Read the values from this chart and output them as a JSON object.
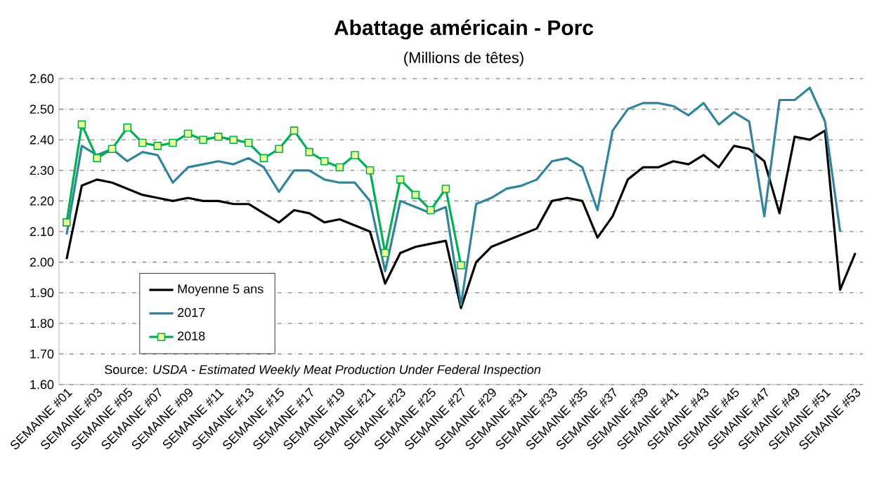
{
  "chart_data": {
    "type": "line",
    "title": "Abattage américain - Porc",
    "subtitle": "(Millions de têtes)",
    "categories": [
      "SEMAINE #01",
      null,
      "SEMAINE #03",
      null,
      "SEMAINE #05",
      null,
      "SEMAINE #07",
      null,
      "SEMAINE #09",
      null,
      "SEMAINE #11",
      null,
      "SEMAINE #13",
      null,
      "SEMAINE #15",
      null,
      "SEMAINE #17",
      null,
      "SEMAINE #19",
      null,
      "SEMAINE #21",
      null,
      "SEMAINE #23",
      null,
      "SEMAINE #25",
      null,
      "SEMAINE #27",
      null,
      "SEMAINE #29",
      null,
      "SEMAINE #31",
      null,
      "SEMAINE #33",
      null,
      "SEMAINE #35",
      null,
      "SEMAINE #37",
      null,
      "SEMAINE #39",
      null,
      "SEMAINE #41",
      null,
      "SEMAINE #43",
      null,
      "SEMAINE #45",
      null,
      "SEMAINE #47",
      null,
      "SEMAINE #49",
      null,
      "SEMAINE #51",
      null,
      "SEMAINE #53"
    ],
    "series": [
      {
        "name": "Moyenne 5 ans",
        "color": "#000000",
        "marker": "none",
        "values": [
          2.01,
          2.25,
          2.27,
          2.26,
          2.24,
          2.22,
          2.21,
          2.2,
          2.21,
          2.2,
          2.2,
          2.19,
          2.19,
          2.16,
          2.13,
          2.17,
          2.16,
          2.13,
          2.14,
          2.12,
          2.1,
          1.93,
          2.03,
          2.05,
          2.06,
          2.07,
          1.85,
          2.0,
          2.05,
          2.07,
          2.09,
          2.11,
          2.2,
          2.21,
          2.2,
          2.08,
          2.15,
          2.27,
          2.31,
          2.31,
          2.33,
          2.32,
          2.35,
          2.31,
          2.38,
          2.37,
          2.33,
          2.16,
          2.41,
          2.4,
          2.43,
          1.91,
          2.03
        ]
      },
      {
        "name": "2017",
        "color": "#31849b",
        "marker": "none",
        "values": [
          2.09,
          2.38,
          2.35,
          2.37,
          2.33,
          2.36,
          2.35,
          2.26,
          2.31,
          2.32,
          2.33,
          2.32,
          2.34,
          2.31,
          2.23,
          2.3,
          2.3,
          2.27,
          2.26,
          2.26,
          2.2,
          1.97,
          2.2,
          2.18,
          2.16,
          2.18,
          1.86,
          2.19,
          2.21,
          2.24,
          2.25,
          2.27,
          2.33,
          2.34,
          2.31,
          2.17,
          2.43,
          2.5,
          2.52,
          2.52,
          2.51,
          2.48,
          2.52,
          2.45,
          2.49,
          2.46,
          2.15,
          2.53,
          2.53,
          2.57,
          2.46,
          2.1,
          null
        ]
      },
      {
        "name": "2018",
        "color": "#00b050",
        "marker": "square",
        "values": [
          2.13,
          2.45,
          2.34,
          2.37,
          2.44,
          2.39,
          2.38,
          2.39,
          2.42,
          2.4,
          2.41,
          2.4,
          2.39,
          2.34,
          2.37,
          2.43,
          2.36,
          2.33,
          2.31,
          2.35,
          2.3,
          2.03,
          2.27,
          2.22,
          2.17,
          2.24,
          1.99,
          null,
          null,
          null,
          null,
          null,
          null,
          null,
          null,
          null,
          null,
          null,
          null,
          null,
          null,
          null,
          null,
          null,
          null,
          null,
          null,
          null,
          null,
          null,
          null,
          null,
          null
        ]
      }
    ],
    "ylim": [
      1.6,
      2.6
    ],
    "yticks": [
      {
        "value": 1.6,
        "label": "1.60"
      },
      {
        "value": 1.7,
        "label": "1.70"
      },
      {
        "value": 1.8,
        "label": "1.80"
      },
      {
        "value": 1.9,
        "label": "1.90"
      },
      {
        "value": 2.0,
        "label": "2.00"
      },
      {
        "value": 2.1,
        "label": "2.10"
      },
      {
        "value": 2.2,
        "label": "2.20"
      },
      {
        "value": 2.3,
        "label": "2.30"
      },
      {
        "value": 2.4,
        "label": "2.40"
      },
      {
        "value": 2.5,
        "label": "2.50"
      },
      {
        "value": 2.6,
        "label": "2.60"
      }
    ],
    "grid": "y",
    "legend": "bottom left",
    "line_style": "solid",
    "annotations": [
      "Source: *USDA - Estimated Weekly Meat Production Under Federal Inspection*"
    ]
  }
}
